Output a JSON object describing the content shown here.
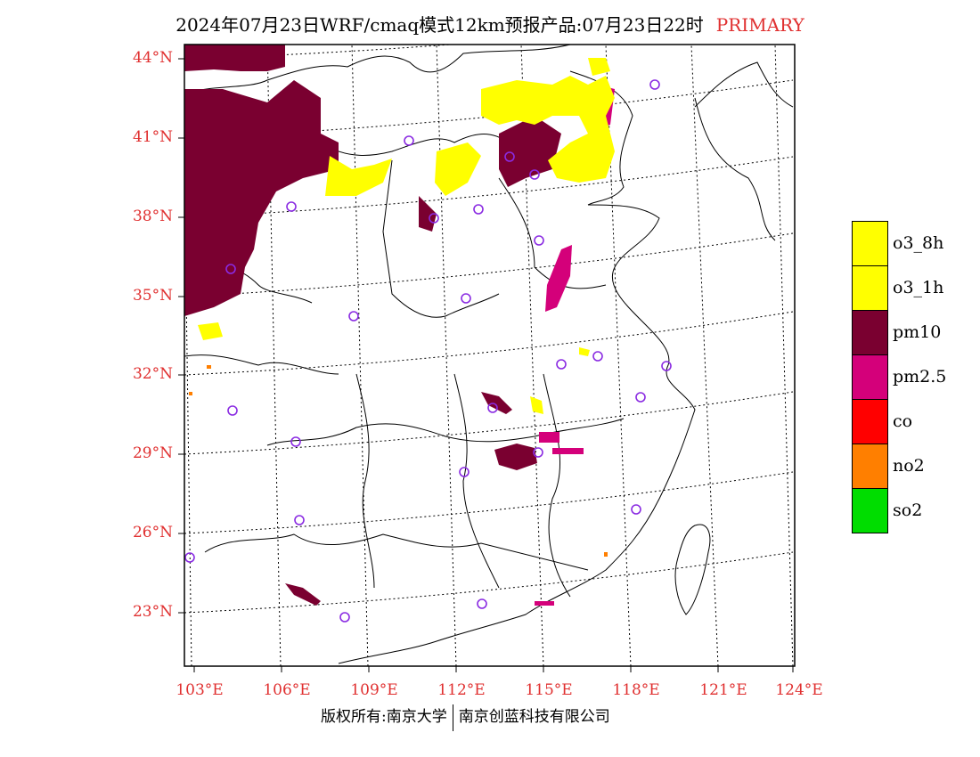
{
  "title": {
    "main": "2024年07月23日WRF/cmaq模式12km预报产品:07月23日22时",
    "tag": "PRIMARY"
  },
  "colors": {
    "o3_8h": "#ffff00",
    "o3_1h": "#ffff00",
    "pm10": "#7a0030",
    "pm25": "#d4007a",
    "co": "#ff0000",
    "no2": "#ff7f00",
    "so2": "#00dd00",
    "axis_label": "#e03030",
    "station_marker": "#8a2be2"
  },
  "axes": {
    "lat_labels": [
      "44°N",
      "41°N",
      "38°N",
      "35°N",
      "32°N",
      "29°N",
      "26°N",
      "23°N"
    ],
    "lon_labels": [
      "103°E",
      "106°E",
      "109°E",
      "112°E",
      "115°E",
      "118°E",
      "121°E",
      "124°E"
    ]
  },
  "legend": [
    {
      "label": "o3_8h",
      "color": "#ffff00"
    },
    {
      "label": "o3_1h",
      "color": "#ffff00"
    },
    {
      "label": "pm10",
      "color": "#7a0030"
    },
    {
      "label": "pm2.5",
      "color": "#d4007a"
    },
    {
      "label": "co",
      "color": "#ff0000"
    },
    {
      "label": "no2",
      "color": "#ff7f00"
    },
    {
      "label": "so2",
      "color": "#00dd00"
    }
  ],
  "footer": {
    "left": "版权所有:南京大学",
    "right": "南京创蓝科技有限公司"
  }
}
